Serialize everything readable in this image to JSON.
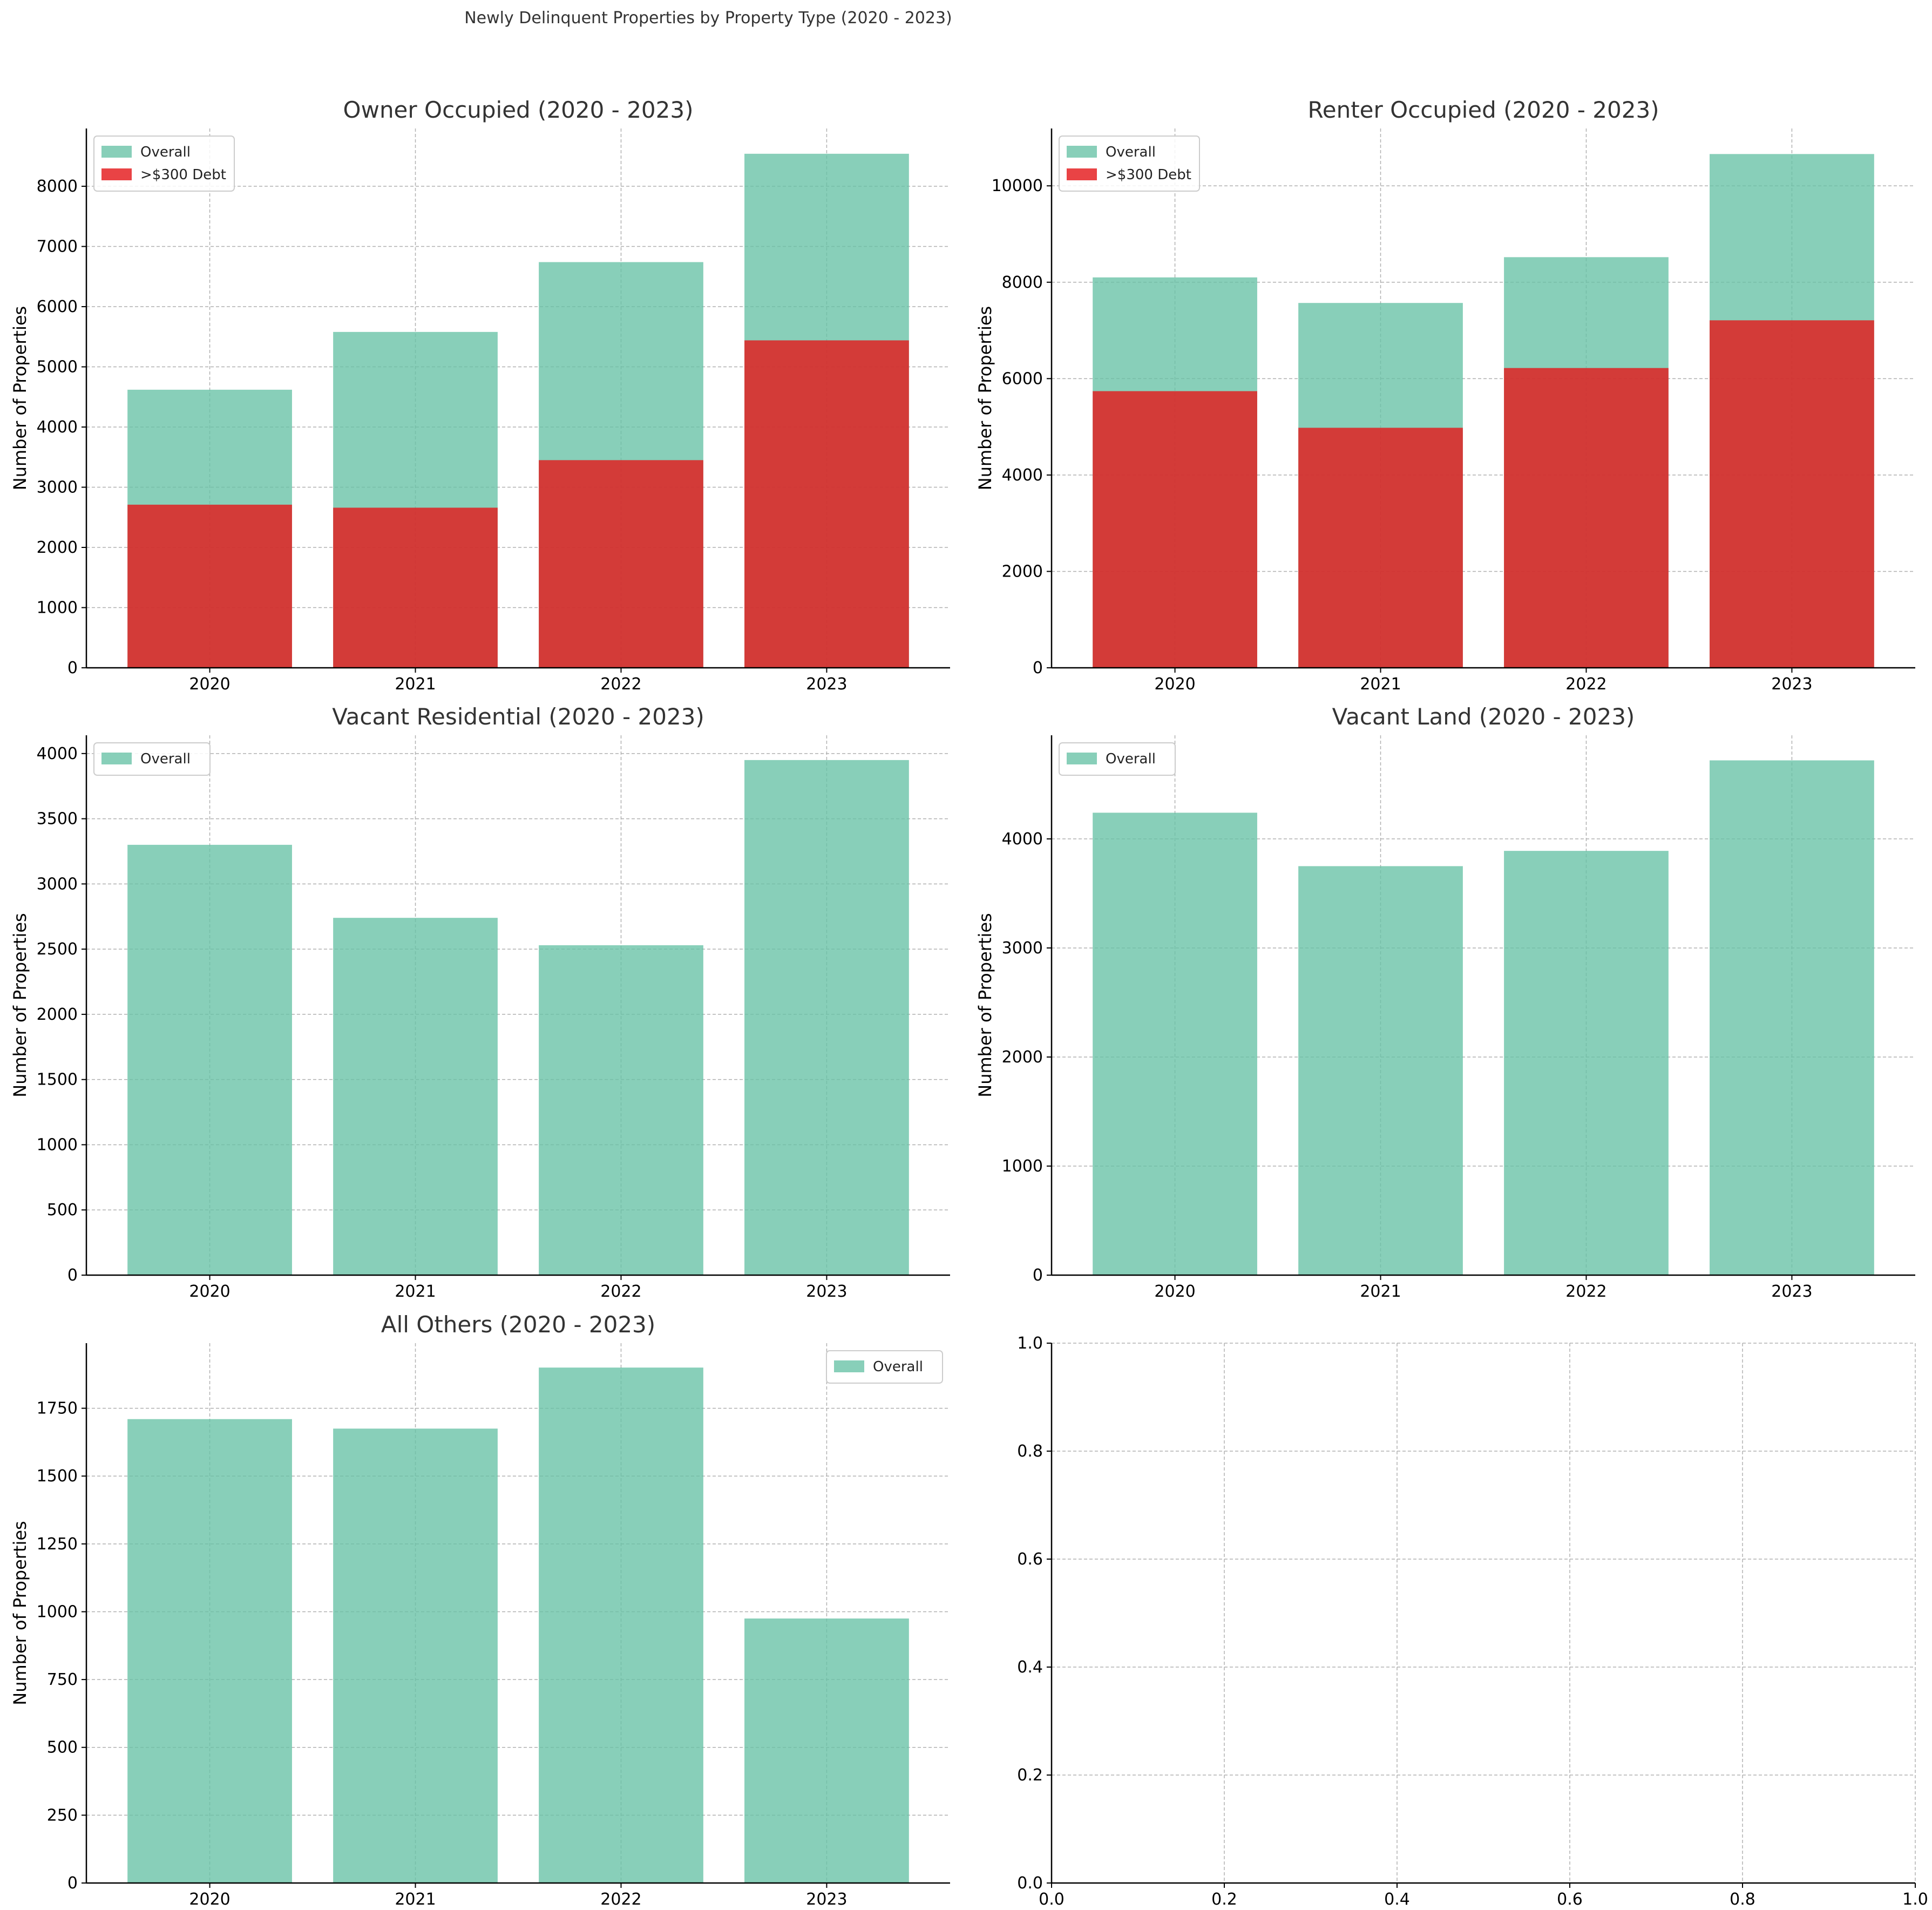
{
  "figure_title": "Newly Delinquent Properties by Property Type (2020 - 2023)",
  "colors": {
    "overall": "#66c2a5",
    "debt": "#e41a1c",
    "grid": "#b0b0b0",
    "axis": "#000000",
    "title_text": "#333333"
  },
  "chart_data": [
    {
      "type": "bar",
      "title": "Owner Occupied (2020 - 2023)",
      "xlabel": "",
      "ylabel": "Number of Properties",
      "categories": [
        "2020",
        "2021",
        "2022",
        "2023"
      ],
      "ylim": [
        0,
        8960
      ],
      "yticks": [
        0,
        1000,
        2000,
        3000,
        4000,
        5000,
        6000,
        7000,
        8000
      ],
      "grid": true,
      "legend": "top-left",
      "series": [
        {
          "name": "Overall",
          "color": "overall",
          "values": [
            4620,
            5580,
            6740,
            8540
          ]
        },
        {
          "name": ">$300 Debt",
          "color": "debt",
          "values": [
            2710,
            2660,
            3450,
            5440
          ]
        }
      ]
    },
    {
      "type": "bar",
      "title": "Renter Occupied (2020 - 2023)",
      "xlabel": "",
      "ylabel": "Number of Properties",
      "categories": [
        "2020",
        "2021",
        "2022",
        "2023"
      ],
      "ylim": [
        0,
        11190
      ],
      "yticks": [
        0,
        2000,
        4000,
        6000,
        8000,
        10000
      ],
      "grid": true,
      "legend": "top-left",
      "series": [
        {
          "name": "Overall",
          "color": "overall",
          "values": [
            8100,
            7570,
            8520,
            10660
          ]
        },
        {
          "name": ">$300 Debt",
          "color": "debt",
          "values": [
            5740,
            4980,
            6220,
            7210
          ]
        }
      ]
    },
    {
      "type": "bar",
      "title": "Vacant Residential (2020 - 2023)",
      "xlabel": "",
      "ylabel": "Number of Properties",
      "categories": [
        "2020",
        "2021",
        "2022",
        "2023"
      ],
      "ylim": [
        0,
        4140
      ],
      "yticks": [
        0,
        500,
        1000,
        1500,
        2000,
        2500,
        3000,
        3500,
        4000
      ],
      "grid": true,
      "legend": "top-left",
      "series": [
        {
          "name": "Overall",
          "color": "overall",
          "values": [
            3300,
            2740,
            2530,
            3950
          ]
        }
      ]
    },
    {
      "type": "bar",
      "title": "Vacant Land (2020 - 2023)",
      "xlabel": "",
      "ylabel": "Number of Properties",
      "categories": [
        "2020",
        "2021",
        "2022",
        "2023"
      ],
      "ylim": [
        0,
        4950
      ],
      "yticks": [
        0,
        1000,
        2000,
        3000,
        4000
      ],
      "grid": true,
      "legend": "top-left",
      "series": [
        {
          "name": "Overall",
          "color": "overall",
          "values": [
            4240,
            3750,
            3890,
            4720
          ]
        }
      ]
    },
    {
      "type": "bar",
      "title": "All Others (2020 - 2023)",
      "xlabel": "",
      "ylabel": "Number of Properties",
      "categories": [
        "2020",
        "2021",
        "2022",
        "2023"
      ],
      "ylim": [
        0,
        1990
      ],
      "yticks": [
        0,
        250,
        500,
        750,
        1000,
        1250,
        1500,
        1750
      ],
      "grid": true,
      "legend": "top-right",
      "series": [
        {
          "name": "Overall",
          "color": "overall",
          "values": [
            1710,
            1675,
            1900,
            975
          ]
        }
      ]
    },
    {
      "type": "empty",
      "title": "",
      "xlabel": "",
      "ylabel": "",
      "xlim": [
        0,
        1
      ],
      "ylim": [
        0,
        1
      ],
      "xticks": [
        "0.0",
        "0.2",
        "0.4",
        "0.6",
        "0.8",
        "1.0"
      ],
      "yticks": [
        "0.0",
        "0.2",
        "0.4",
        "0.6",
        "0.8",
        "1.0"
      ],
      "grid": true,
      "series": []
    }
  ]
}
